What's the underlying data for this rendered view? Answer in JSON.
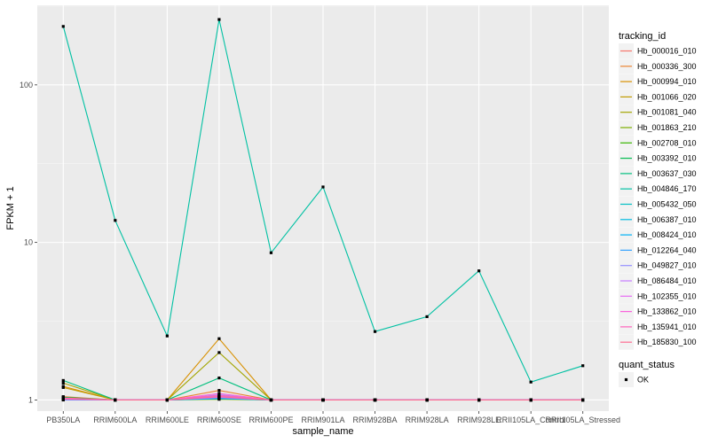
{
  "chart_data": {
    "type": "line",
    "xlabel": "sample_name",
    "ylabel": "FPKM + 1",
    "y_scale": "log10",
    "ylim": [
      0.85,
      320
    ],
    "y_ticks": [
      {
        "value": 1,
        "label": "1"
      },
      {
        "value": 10,
        "label": "10"
      },
      {
        "value": 100,
        "label": "100"
      }
    ],
    "categories": [
      "PB350LA",
      "RRIM600LA",
      "RRIM600LE",
      "RRIM600SE",
      "RRIM600PE",
      "RRIM901LA",
      "RRIM928BA",
      "RRIM928LA",
      "RRIM928LE",
      "RRII105LA_Control",
      "RRII105LA_Stressed"
    ],
    "grid": true,
    "background": "#ebebeb",
    "legend": {
      "position": "right",
      "title": "tracking_id",
      "shape_title": "quant_status",
      "shape_entries": [
        "OK"
      ]
    },
    "series": [
      {
        "name": "Hb_000016_010",
        "color": "#F8766D",
        "values": [
          1.03,
          1,
          1,
          1.02,
          1,
          1,
          1,
          1,
          1,
          1,
          1
        ]
      },
      {
        "name": "Hb_000336_300",
        "color": "#EA8331",
        "values": [
          1.05,
          1,
          1,
          1.15,
          1,
          1,
          1,
          1,
          1,
          1,
          1
        ]
      },
      {
        "name": "Hb_000994_010",
        "color": "#D89000",
        "values": [
          1.22,
          1,
          1,
          2.45,
          1,
          1,
          1,
          1,
          1,
          1,
          1
        ]
      },
      {
        "name": "Hb_001066_020",
        "color": "#C09B00",
        "values": [
          1.2,
          1,
          1,
          1.03,
          1,
          1,
          1,
          1,
          1,
          1,
          1
        ]
      },
      {
        "name": "Hb_001081_040",
        "color": "#A3A500",
        "values": [
          1.28,
          1,
          1,
          2.0,
          1,
          1,
          1,
          1,
          1,
          1,
          1
        ]
      },
      {
        "name": "Hb_001863_210",
        "color": "#7CAE00",
        "values": [
          1.02,
          1,
          1,
          1.01,
          1,
          1,
          1,
          1,
          1,
          1,
          1
        ]
      },
      {
        "name": "Hb_002708_010",
        "color": "#39B600",
        "values": [
          1.01,
          1,
          1,
          1.02,
          1,
          1,
          1,
          1,
          1,
          1,
          1
        ]
      },
      {
        "name": "Hb_003392_010",
        "color": "#00BB4E",
        "values": [
          1.04,
          1,
          1,
          1.04,
          1,
          1,
          1,
          1,
          1,
          1,
          1
        ]
      },
      {
        "name": "Hb_003637_030",
        "color": "#00BF7D",
        "values": [
          1.33,
          1,
          1,
          1.38,
          1,
          1,
          1,
          1,
          1,
          1,
          1
        ]
      },
      {
        "name": "Hb_004846_170",
        "color": "#00C1A3",
        "values": [
          235,
          13.8,
          2.55,
          260,
          8.6,
          22.5,
          2.72,
          3.38,
          6.6,
          1.3,
          1.65
        ]
      },
      {
        "name": "Hb_005432_050",
        "color": "#00BFC4",
        "values": [
          1.01,
          1,
          1,
          1.03,
          1,
          1,
          1,
          1,
          1,
          1,
          1
        ]
      },
      {
        "name": "Hb_006387_010",
        "color": "#00BAE0",
        "values": [
          1.02,
          1,
          1,
          1.05,
          1,
          1,
          1,
          1,
          1,
          1,
          1
        ]
      },
      {
        "name": "Hb_008424_010",
        "color": "#00B0F6",
        "values": [
          1.01,
          1,
          1,
          1.02,
          1,
          1,
          1,
          1,
          1,
          1,
          1
        ]
      },
      {
        "name": "Hb_012264_040",
        "color": "#35A2FF",
        "values": [
          1.0,
          1,
          1,
          1.03,
          1,
          1,
          1,
          1,
          1,
          1,
          1
        ]
      },
      {
        "name": "Hb_049827_010",
        "color": "#9590FF",
        "values": [
          1.02,
          1,
          1,
          1.08,
          1,
          1,
          1,
          1,
          1,
          1,
          1
        ]
      },
      {
        "name": "Hb_086484_010",
        "color": "#C77CFF",
        "values": [
          1.01,
          1,
          1,
          1.06,
          1,
          1,
          1,
          1,
          1,
          1,
          1
        ]
      },
      {
        "name": "Hb_102355_010",
        "color": "#E76BF3",
        "values": [
          1.02,
          1,
          1,
          1.04,
          1,
          1,
          1,
          1,
          1,
          1,
          1
        ]
      },
      {
        "name": "Hb_133862_010",
        "color": "#FA62DB",
        "values": [
          1.01,
          1,
          1,
          1.1,
          1,
          1,
          1,
          1,
          1,
          1,
          1
        ]
      },
      {
        "name": "Hb_135941_010",
        "color": "#FF62BC",
        "values": [
          1.03,
          1,
          1,
          1.07,
          1,
          1,
          1,
          1,
          1,
          1,
          1
        ]
      },
      {
        "name": "Hb_185830_100",
        "color": "#FF6C91",
        "values": [
          1.02,
          1,
          1,
          1.05,
          1,
          1,
          1,
          1,
          1,
          1,
          1
        ]
      }
    ]
  }
}
